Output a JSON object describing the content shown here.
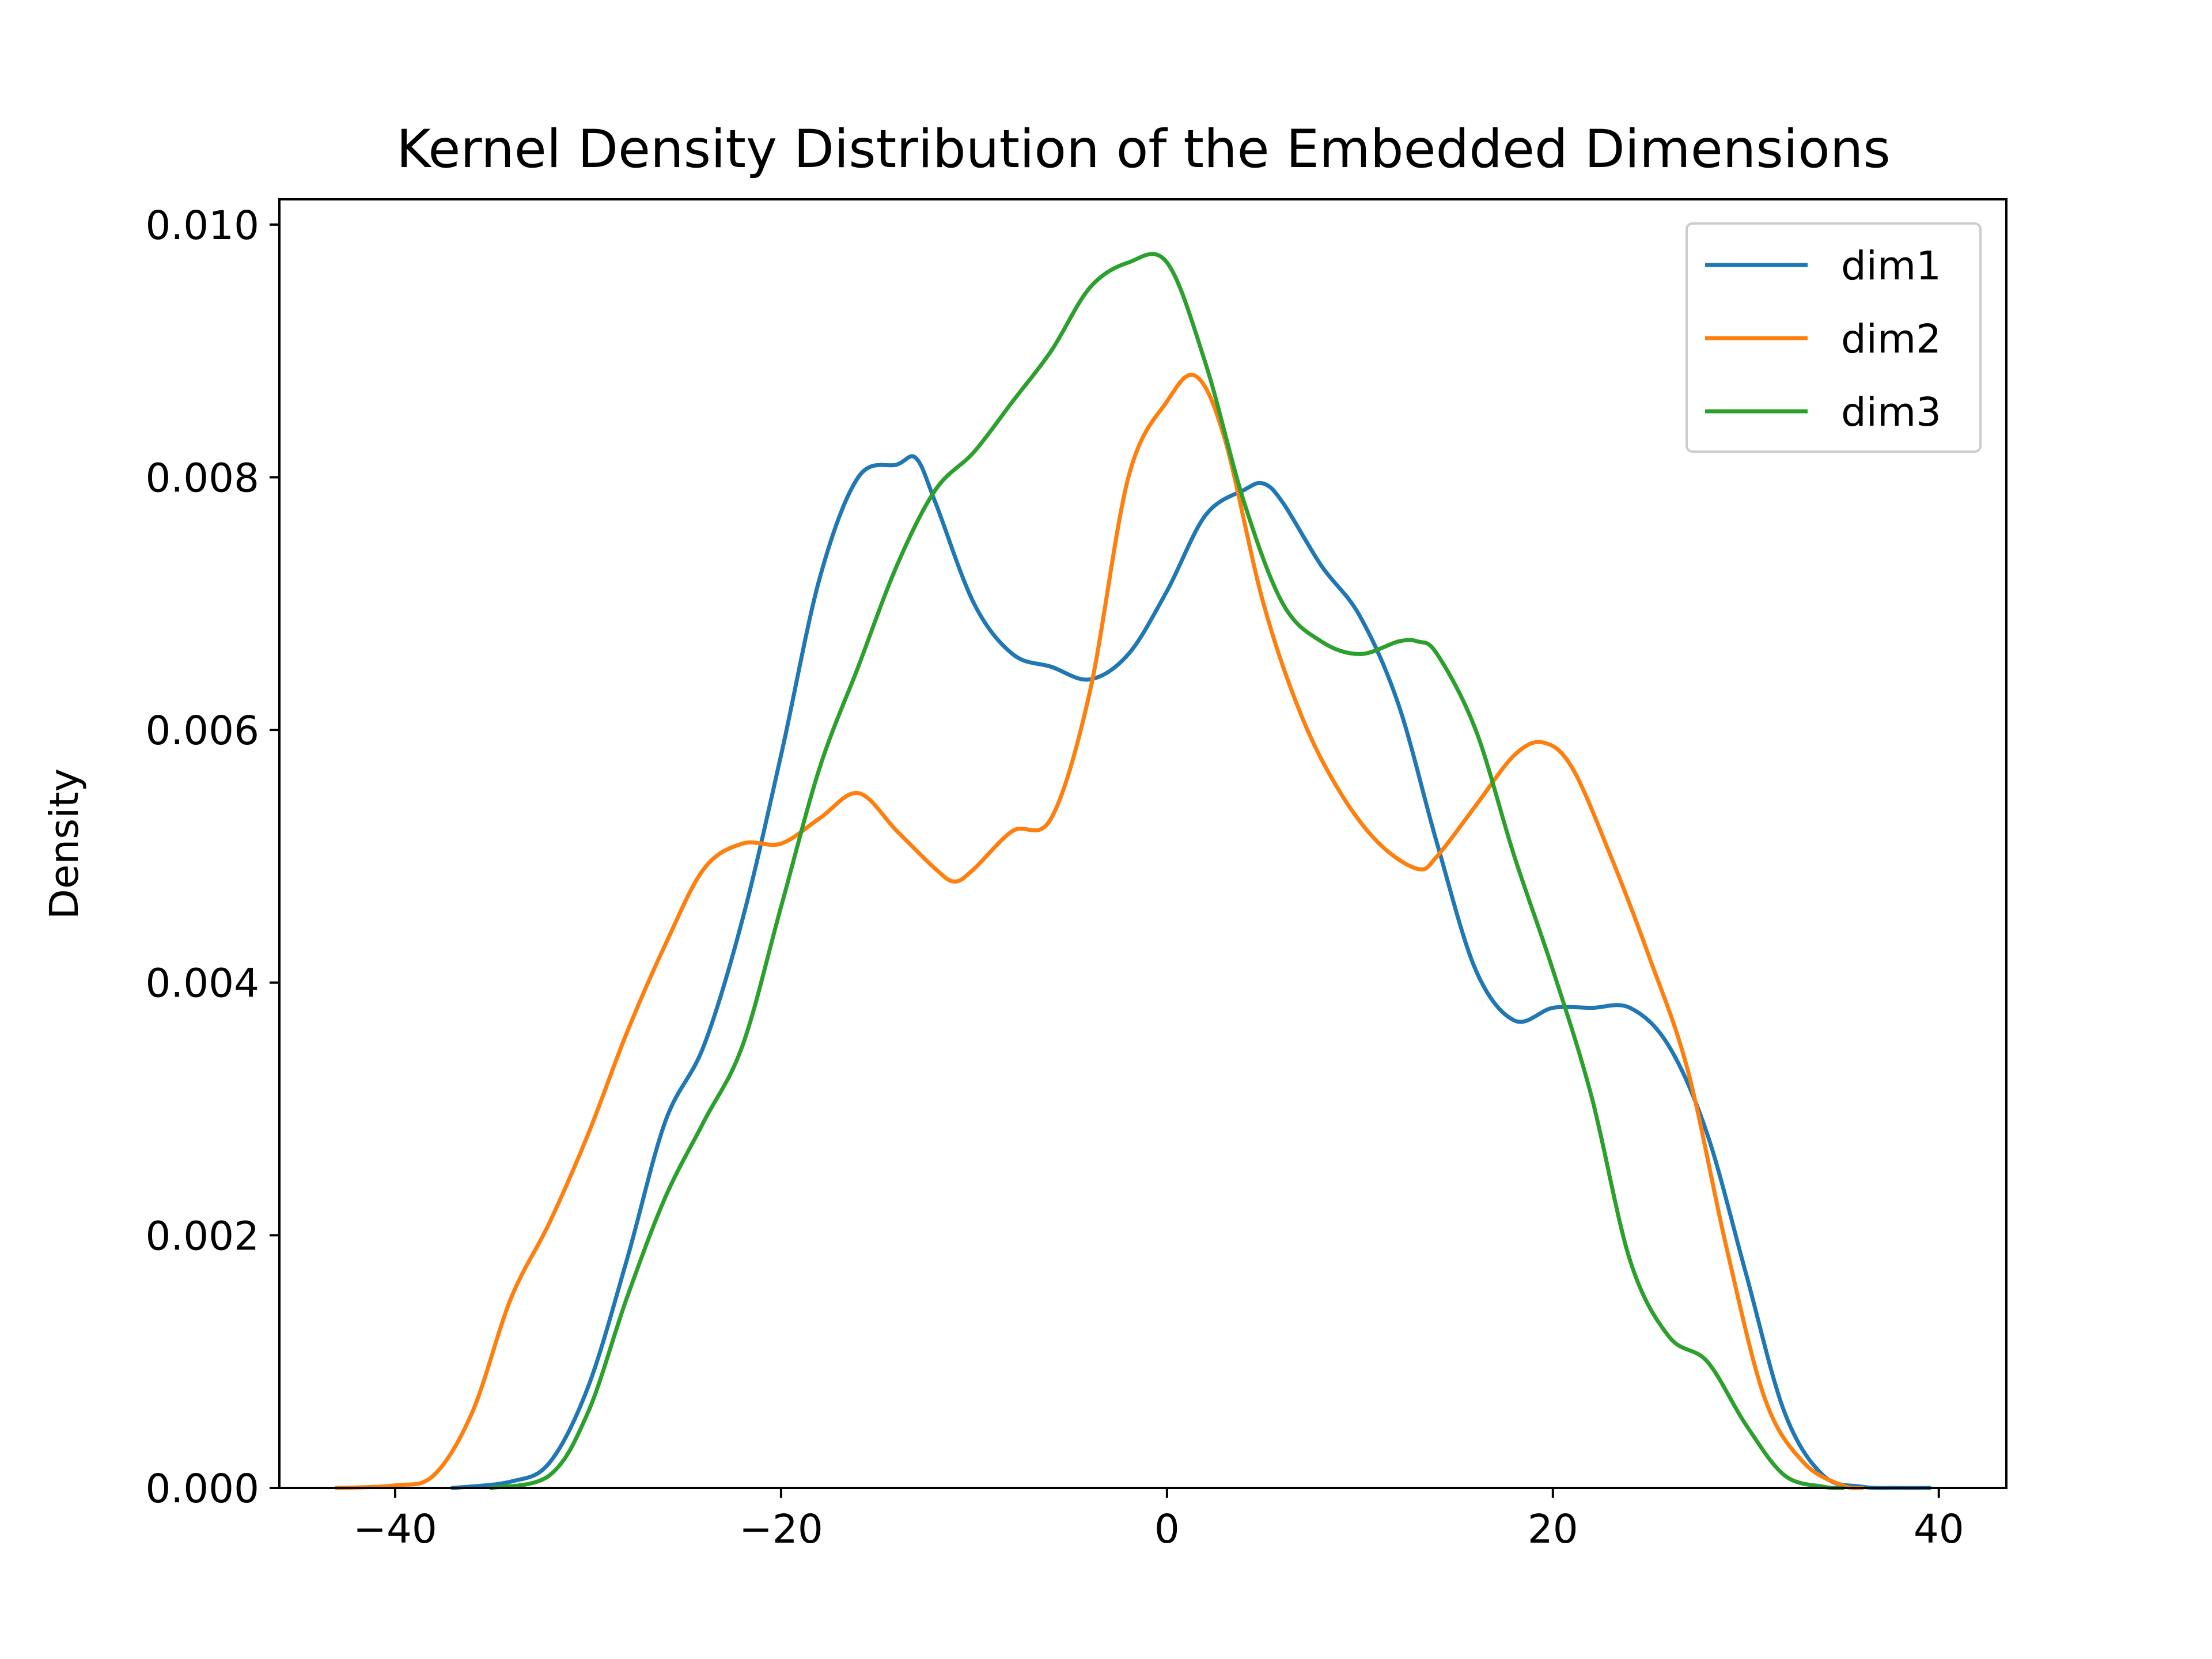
{
  "chart_data": {
    "type": "line",
    "title": "Kernel Density Distribution of the Embedded Dimensions",
    "xlabel": "",
    "ylabel": "Density",
    "xlim": [
      -46,
      43.5
    ],
    "ylim": [
      0,
      0.0102
    ],
    "xticks": [
      -40,
      -20,
      0,
      20,
      40
    ],
    "xtick_labels": [
      "−40",
      "−20",
      "0",
      "20",
      "40"
    ],
    "yticks": [
      0,
      0.002,
      0.004,
      0.006,
      0.008,
      0.01
    ],
    "ytick_labels": [
      "0.000",
      "0.002",
      "0.004",
      "0.006",
      "0.008",
      "0.010"
    ],
    "grid": false,
    "legend_position": "top-right",
    "series": [
      {
        "name": "dim1",
        "color": "#1f77b4",
        "x": [
          -37,
          -34,
          -32,
          -30,
          -28,
          -26,
          -24,
          -22,
          -20,
          -18,
          -16,
          -14,
          -13,
          -12,
          -10,
          -8,
          -6,
          -4,
          -2,
          0,
          2,
          4,
          5,
          6,
          8,
          10,
          12,
          14,
          16,
          18,
          20,
          22,
          24,
          26,
          28,
          30,
          32,
          34,
          36,
          38,
          39.5
        ],
        "y": [
          0,
          5e-05,
          0.0002,
          0.0008,
          0.0018,
          0.0029,
          0.0035,
          0.0045,
          0.0058,
          0.0072,
          0.008,
          0.0081,
          0.00815,
          0.0078,
          0.007,
          0.0066,
          0.0065,
          0.0064,
          0.0066,
          0.0071,
          0.0077,
          0.0079,
          0.00795,
          0.0078,
          0.0073,
          0.0069,
          0.0062,
          0.0051,
          0.0041,
          0.0037,
          0.0038,
          0.0038,
          0.0038,
          0.0035,
          0.0028,
          0.0017,
          0.0006,
          0.0001,
          1e-05,
          0,
          0
        ]
      },
      {
        "name": "dim2",
        "color": "#ff7f0e",
        "x": [
          -43,
          -40,
          -38,
          -36,
          -34,
          -32,
          -30,
          -28,
          -26,
          -24,
          -22,
          -20,
          -18,
          -16,
          -14,
          -12,
          -11,
          -10,
          -8,
          -6,
          -4,
          -2,
          0,
          1.5,
          3,
          5,
          7,
          9,
          11,
          13,
          14,
          16,
          18,
          19.5,
          21,
          23,
          25,
          27,
          29,
          31,
          33,
          35,
          36
        ],
        "y": [
          0,
          2e-05,
          0.0001,
          0.0006,
          0.0015,
          0.0021,
          0.0028,
          0.0036,
          0.0043,
          0.0049,
          0.0051,
          0.0051,
          0.0053,
          0.0055,
          0.0052,
          0.0049,
          0.0048,
          0.0049,
          0.0052,
          0.0053,
          0.0063,
          0.008,
          0.0086,
          0.0088,
          0.0083,
          0.007,
          0.0061,
          0.0055,
          0.0051,
          0.0049,
          0.005,
          0.0054,
          0.0058,
          0.0059,
          0.0057,
          0.005,
          0.0042,
          0.0033,
          0.0019,
          0.0007,
          0.0002,
          2e-05,
          0
        ]
      },
      {
        "name": "dim3",
        "color": "#2ca02c",
        "x": [
          -35,
          -32,
          -30,
          -28,
          -26,
          -24,
          -22,
          -20,
          -18,
          -16,
          -14,
          -12,
          -10,
          -8,
          -6,
          -4,
          -2,
          0,
          2,
          4,
          6,
          8,
          10,
          12,
          13,
          14,
          16,
          18,
          20,
          22,
          24,
          26,
          28,
          30,
          32,
          34,
          35
        ],
        "y": [
          0,
          0.0001,
          0.0006,
          0.0015,
          0.0023,
          0.0029,
          0.0035,
          0.0046,
          0.0057,
          0.0065,
          0.0073,
          0.0079,
          0.0082,
          0.0086,
          0.009,
          0.0095,
          0.0097,
          0.0097,
          0.0089,
          0.0078,
          0.007,
          0.0067,
          0.0066,
          0.0067,
          0.0067,
          0.0066,
          0.006,
          0.005,
          0.0041,
          0.0031,
          0.0018,
          0.0012,
          0.001,
          0.0005,
          0.0001,
          1e-05,
          0
        ]
      }
    ]
  }
}
